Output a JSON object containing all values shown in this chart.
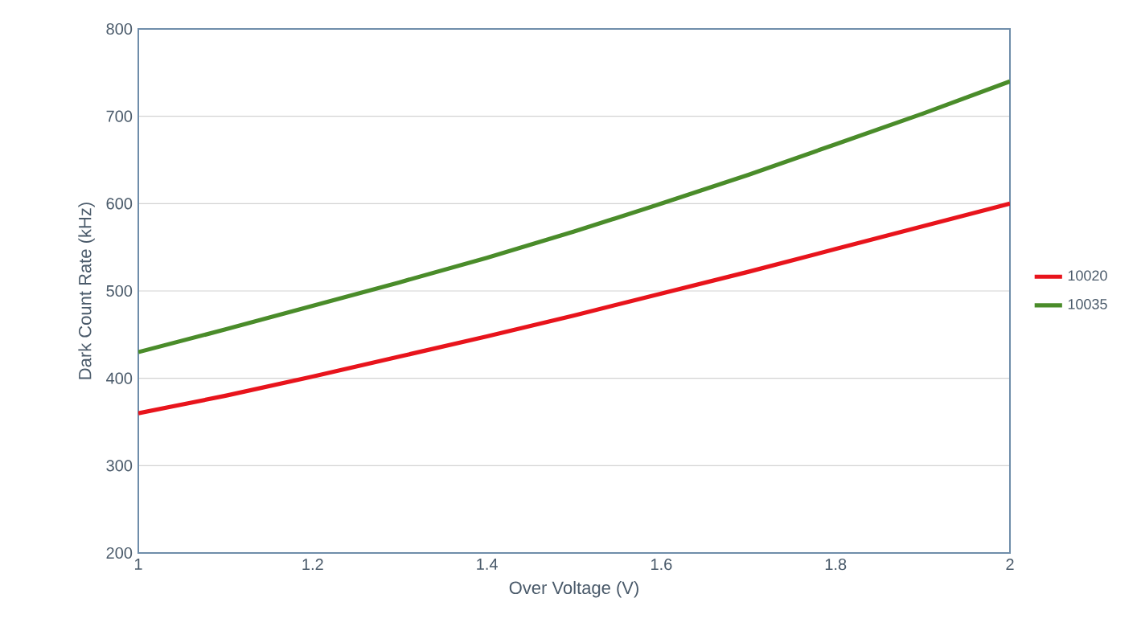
{
  "chart_data": {
    "type": "line",
    "xlabel": "Over Voltage (V)",
    "ylabel": "Dark Count Rate (kHz)",
    "x": [
      1,
      1.1,
      1.2,
      1.3,
      1.4,
      1.5,
      1.6,
      1.7,
      1.8,
      1.9,
      2
    ],
    "series": [
      {
        "name": "10020",
        "color": "#e8141c",
        "values": [
          360,
          380,
          402,
          425,
          448,
          472,
          497,
          522,
          548,
          574,
          600
        ]
      },
      {
        "name": "10035",
        "color": "#4a8c2a",
        "values": [
          430,
          456,
          483,
          510,
          538,
          568,
          600,
          633,
          668,
          703,
          740
        ]
      }
    ],
    "xlim": [
      1,
      2
    ],
    "ylim": [
      200,
      800
    ],
    "xticks": [
      1,
      1.2,
      1.4,
      1.6,
      1.8,
      2
    ],
    "yticks": [
      200,
      300,
      400,
      500,
      600,
      700,
      800
    ],
    "grid": "y",
    "legend": "right",
    "marker": "none",
    "line_style": "solid"
  }
}
